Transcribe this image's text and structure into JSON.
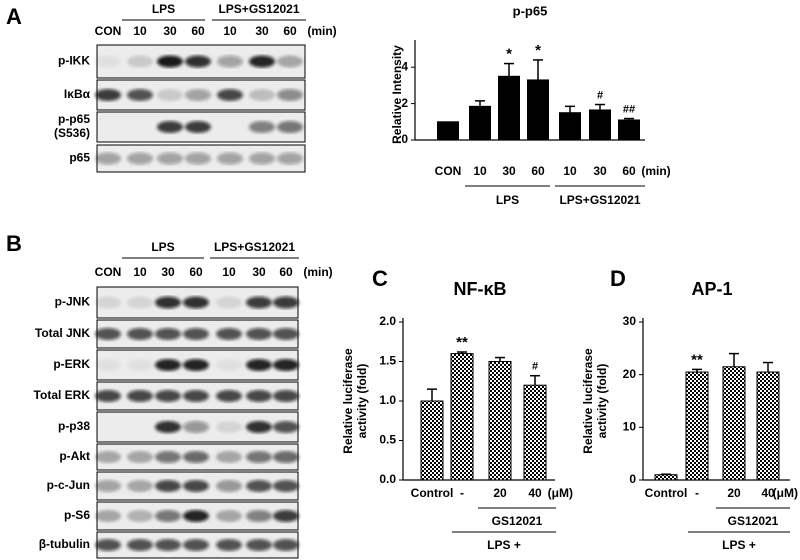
{
  "panel_labels": [
    "A",
    "B",
    "C",
    "D"
  ],
  "blots": [
    {
      "groups": [
        "LPS",
        "LPS+GS12021"
      ],
      "lanes": [
        "CON",
        "10",
        "30",
        "60",
        "10",
        "30",
        "60"
      ],
      "unit": "(min)",
      "rows": [
        [
          "p-IKK"
        ],
        [
          "IκBα"
        ],
        [
          "p-p65",
          "(S536)"
        ],
        [
          "p65"
        ]
      ]
    },
    {
      "groups": [
        "LPS",
        "LPS+GS12021"
      ],
      "lanes": [
        "CON",
        "10",
        "30",
        "60",
        "10",
        "30",
        "60"
      ],
      "unit": "(min)",
      "rows": [
        [
          "p-JNK"
        ],
        [
          "Total JNK"
        ],
        [
          "p-ERK"
        ],
        [
          "Total ERK"
        ],
        [
          "p-p38"
        ],
        [
          "p-Akt"
        ],
        [
          "p-c-Jun"
        ],
        [
          "p-S6"
        ],
        [
          "β-tubulin"
        ]
      ]
    }
  ],
  "chart_data": [
    {
      "type": "bar",
      "title": "p-p65",
      "ylabel": [
        "Relative Intensity"
      ],
      "categories": [
        "CON",
        "10",
        "30",
        "60",
        "10",
        "30",
        "60"
      ],
      "unit": "(min)",
      "values": [
        1.0,
        1.85,
        3.5,
        3.3,
        1.5,
        1.65,
        1.1
      ],
      "errors": [
        0,
        0.3,
        0.7,
        1.1,
        0.35,
        0.3,
        0.08
      ],
      "value_annotations": [
        null,
        null,
        "*",
        "*",
        null,
        "#",
        "##"
      ],
      "groups": [
        "LPS",
        "LPS+GS12021"
      ],
      "color": "#000000",
      "fill": "solid",
      "ylim": [
        0,
        5
      ],
      "yticks": [
        0,
        2,
        4
      ]
    },
    {
      "type": "bar",
      "title": "NF-κB",
      "ylabel": [
        "Relative luciferase",
        "activity (fold)"
      ],
      "categories": [
        "Control",
        "-",
        "20",
        "40"
      ],
      "unit": "(μM)",
      "values": [
        1.0,
        1.6,
        1.5,
        1.2
      ],
      "errors": [
        0.15,
        0.02,
        0.05,
        0.12
      ],
      "value_annotations": [
        null,
        "**",
        null,
        "#"
      ],
      "groups": [
        "GS12021",
        "LPS +"
      ],
      "color": "#000000",
      "fill": "checker",
      "ylim": [
        0,
        2.0
      ],
      "yticks": [
        {
          "value": 0,
          "label": "0.0"
        },
        {
          "value": 0.5,
          "label": "0.5"
        },
        {
          "value": 1.0,
          "label": "1.0"
        },
        {
          "value": 1.5,
          "label": "1.5"
        },
        {
          "value": 2.0,
          "label": "2.0"
        }
      ]
    },
    {
      "type": "bar",
      "title": "AP-1",
      "ylabel": [
        "Relative luciferase",
        "activity (fold)"
      ],
      "categories": [
        "Control",
        "-",
        "20",
        "40"
      ],
      "unit": "(μM)",
      "values": [
        1.0,
        20.5,
        21.5,
        20.5
      ],
      "errors": [
        0.1,
        0.5,
        2.5,
        1.8
      ],
      "value_annotations": [
        null,
        "**",
        null,
        null
      ],
      "groups": [
        "GS12021",
        "LPS +"
      ],
      "color": "#000000",
      "fill": "checker",
      "ylim": [
        0,
        30
      ],
      "yticks": [
        0,
        10,
        20,
        30
      ]
    }
  ]
}
